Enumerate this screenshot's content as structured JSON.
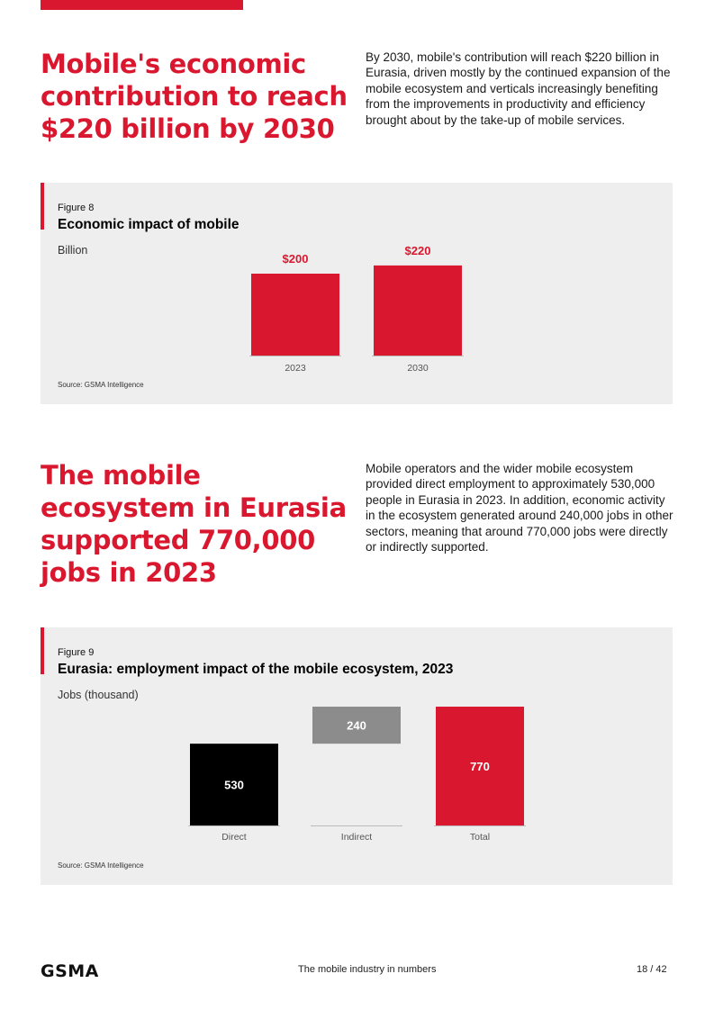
{
  "section1": {
    "headline": [
      "Mobile's economic",
      "contribution to reach",
      "$220 billion by 2030"
    ],
    "intro": "By 2030, mobile's contribution will reach $220 billion in Eurasia, driven mostly by the continued expansion of the mobile ecosystem and verticals increasingly benefiting from the improvements in productivity and efficiency brought about by the take-up of mobile services."
  },
  "figure8": {
    "number": "Figure 8",
    "title": "Economic impact of mobile",
    "unit": "Billion",
    "source": "Source: GSMA Intelligence"
  },
  "section2": {
    "headline": [
      "The mobile",
      "ecosystem in Eurasia",
      "supported 770,000",
      "jobs in 2023"
    ],
    "intro": "Mobile operators and the wider mobile ecosystem provided direct employment to approximately 530,000 people in Eurasia in 2023. In addition, economic activity in the ecosystem generated around 240,000 jobs in other sectors, meaning that around 770,000 jobs were directly or indirectly supported."
  },
  "figure9": {
    "number": "Figure 9",
    "title": "Eurasia: employment impact of the mobile ecosystem, 2023",
    "unit": "Jobs (thousand)",
    "source": "Source: GSMA Intelligence"
  },
  "chart_data": [
    {
      "type": "bar",
      "title": "Economic impact of mobile",
      "ylabel": "Billion",
      "categories": [
        "2023",
        "2030"
      ],
      "values": [
        200,
        220
      ],
      "value_labels": [
        "$200",
        "$220"
      ],
      "color": "#d9182f",
      "grid": false
    },
    {
      "type": "bar",
      "subtype": "waterfall",
      "title": "Eurasia: employment impact of the mobile ecosystem, 2023",
      "ylabel": "Jobs (thousand)",
      "categories": [
        "Direct",
        "Indirect",
        "Total"
      ],
      "values": [
        530,
        240,
        770
      ],
      "bases": [
        0,
        530,
        0
      ],
      "value_labels": [
        "530",
        "240",
        "770"
      ],
      "colors": [
        "#000000",
        "#8c8c8c",
        "#d9182f"
      ],
      "grid": false
    }
  ],
  "footer": {
    "logo": "GSMA",
    "text": "The mobile industry in numbers",
    "page": "18 / 42"
  }
}
